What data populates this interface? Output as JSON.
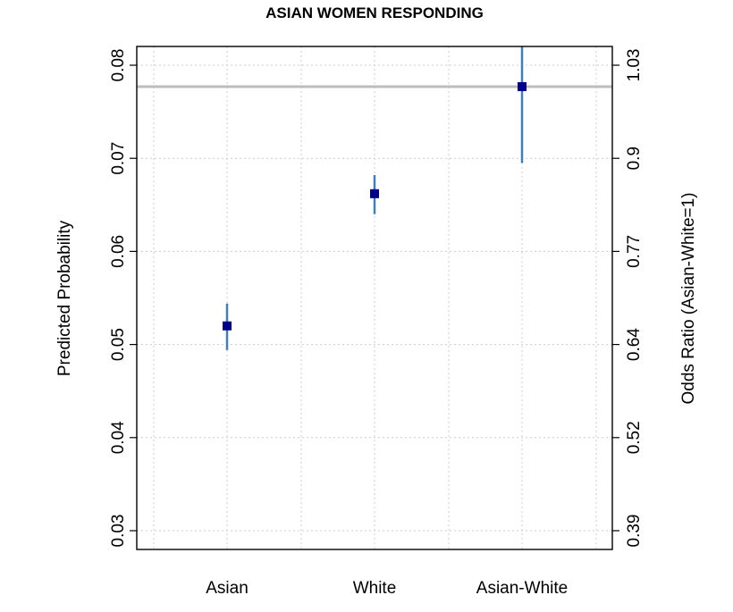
{
  "chart_data": {
    "type": "scatter",
    "title": "ASIAN WOMEN RESPONDING",
    "ylabel": "Predicted Probability",
    "y2label": "Odds Ratio (Asian-White=1)",
    "categories": [
      "Asian",
      "White",
      "Asian-White"
    ],
    "ylim": [
      0.03,
      0.08
    ],
    "yticks": [
      "0.03",
      "0.04",
      "0.05",
      "0.06",
      "0.07",
      "0.08"
    ],
    "y2ticks": [
      "0.39",
      "0.52",
      "0.64",
      "0.77",
      "0.9",
      "1.03"
    ],
    "reference_line": 0.0777,
    "grid": true,
    "series": [
      {
        "points": [
          {
            "category": "Asian",
            "value": 0.052,
            "lower": 0.0494,
            "upper": 0.0544
          },
          {
            "category": "White",
            "value": 0.0662,
            "lower": 0.064,
            "upper": 0.0682
          },
          {
            "category": "Asian-White",
            "value": 0.0777,
            "lower": 0.0695,
            "upper": 0.0825
          }
        ]
      }
    ],
    "colors": {
      "point": "#00008b",
      "ci": "#3f7fba",
      "reference": "#bdbdbd",
      "grid": "#cccccc"
    }
  }
}
